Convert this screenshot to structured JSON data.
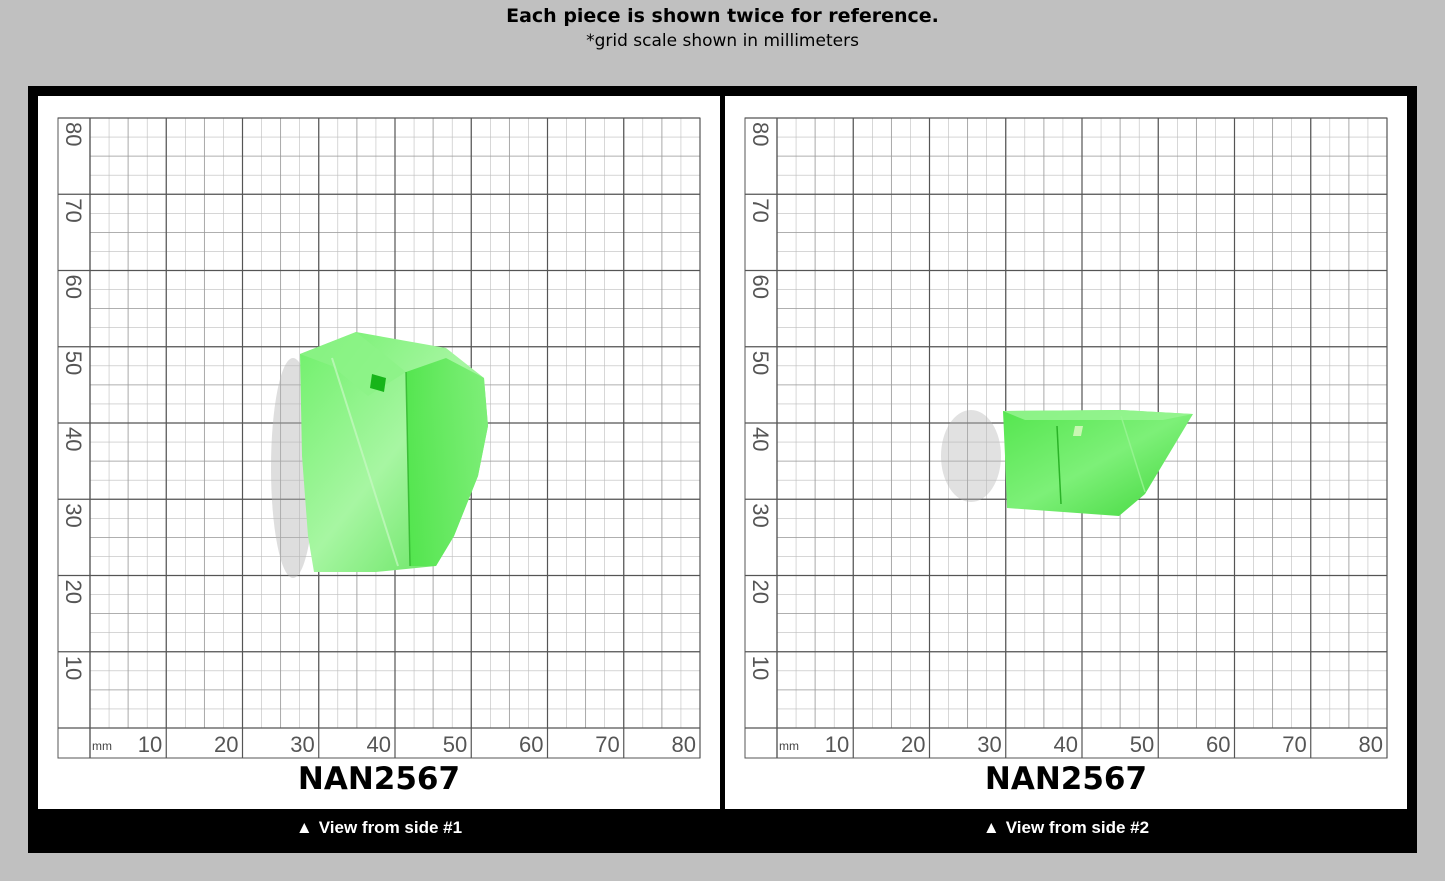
{
  "header": {
    "title": "Each piece is shown twice for reference.",
    "subtitle": "*grid scale shown in millimeters"
  },
  "grid": {
    "unit": "mm",
    "x_labels": [
      "10",
      "20",
      "30",
      "40",
      "50",
      "60",
      "70",
      "80"
    ],
    "y_labels": [
      "10",
      "20",
      "30",
      "40",
      "50",
      "60",
      "70",
      "80"
    ],
    "line_color": "#555555",
    "minor_line_color": "#bdbdbd"
  },
  "panels": [
    {
      "code": "NAN2567",
      "caption": "View from side #1",
      "arrow": "▲"
    },
    {
      "code": "NAN2567",
      "caption": "View from side #2",
      "arrow": "▲"
    }
  ],
  "colors": {
    "background": "#c0c0c0",
    "frame": "#000000",
    "specimen_green": "#4fe04a",
    "specimen_light": "#9df59a"
  }
}
